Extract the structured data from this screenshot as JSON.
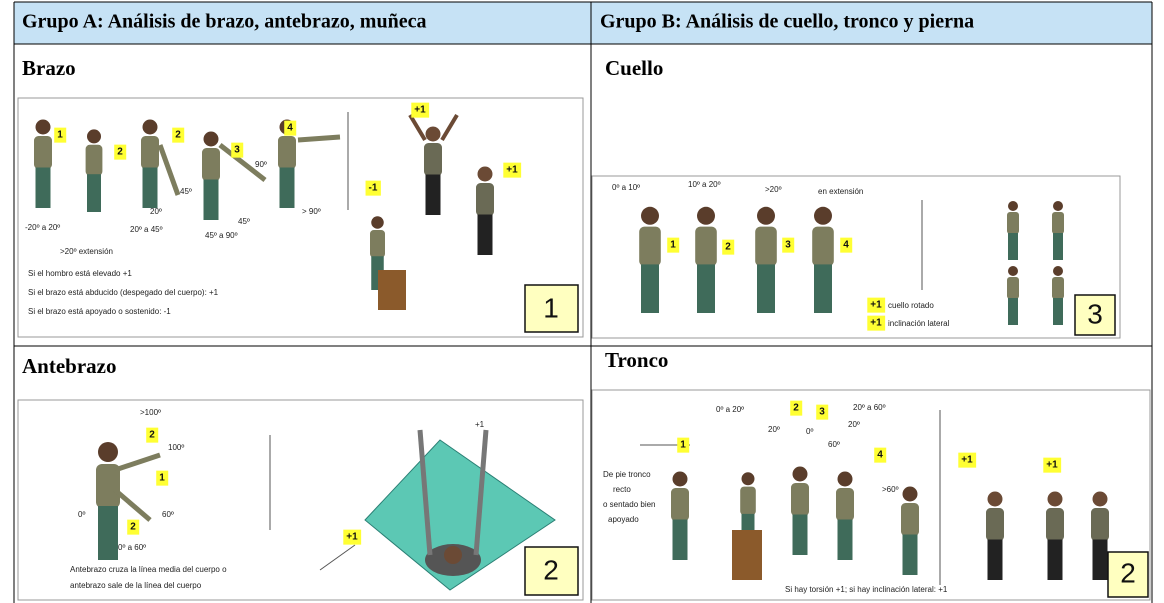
{
  "header": {
    "columns": [
      "Grupo A: Análisis de brazo, antebrazo, muñeca",
      "Grupo B: Análisis de cuello, tronco y pierna"
    ]
  },
  "brazo": {
    "title": "Brazo",
    "badges": [
      "1",
      "2",
      "2",
      "3",
      "4",
      "+1",
      "-1",
      "+1"
    ],
    "labels": [
      "-20º a 20º",
      "20º a 45º",
      "45º a 90º",
      "> 90º",
      ">20º extensión",
      "45º",
      "20º",
      "45º",
      "90º"
    ],
    "notes": [
      "Si el hombro está elevado +1",
      "Si el brazo está abducido (despegado del cuerpo): +1",
      "Si el brazo está apoyado o sostenido: -1"
    ],
    "panel_number": "1"
  },
  "cuello": {
    "title": "Cuello",
    "badges": [
      "1",
      "2",
      "3",
      "4",
      "+1",
      "+1"
    ],
    "labels": [
      "0º a 10º",
      "10º a 20º",
      ">20º",
      "en extensión"
    ],
    "notes": [
      "cuello rotado",
      "inclinación lateral"
    ],
    "panel_number": "3"
  },
  "antebrazo": {
    "title": "Antebrazo",
    "badges": [
      "2",
      "1",
      "2",
      "+1"
    ],
    "labels": [
      ">100º",
      "100º",
      "60º",
      "0º",
      "0º a 60º",
      "+1"
    ],
    "notes": [
      "Antebrazo cruza la línea media del cuerpo o",
      "antebrazo sale de la línea del cuerpo"
    ],
    "panel_number": "2"
  },
  "tronco": {
    "title": "Tronco",
    "badges": [
      "1",
      "2",
      "3",
      "4",
      "+1",
      "+1"
    ],
    "labels": [
      "0º a 20º",
      "20º a 60º",
      "20º",
      "0º",
      "20º",
      "60º",
      ">60º"
    ],
    "notes": [
      "De pie tronco",
      "recto",
      "o sentado bien",
      "apoyado",
      "Si hay torsión +1; si hay inclinación lateral: +1"
    ],
    "panel_number": "2"
  }
}
